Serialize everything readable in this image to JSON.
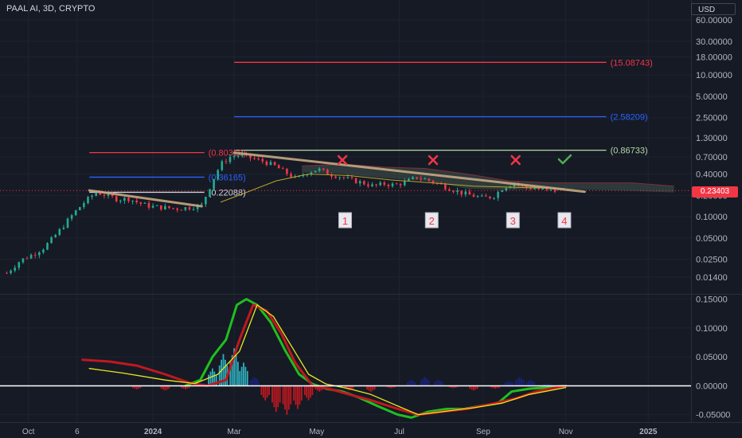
{
  "header": {
    "title": "PAAL AI, 3D, CRYPTO",
    "currency": "USD"
  },
  "colors": {
    "background": "#161a25",
    "grid": "#1f2330",
    "bull": "#22ab94",
    "bear": "#f23645",
    "trendline": "#c7a783",
    "macd_line": "#1fbf1f",
    "signal_line": "#c0181f",
    "slow_line": "#e8e81f",
    "hist_pos": "#2fb0bf",
    "hist_pos_dark": "#1a237e",
    "hist_neg": "#c0181f",
    "level_red": "#f23645",
    "level_blue": "#2962ff",
    "level_white": "#d1d4dc",
    "level_green": "#b6d7a8",
    "cross": "#f23645",
    "check": "#4caf50"
  },
  "current_price": {
    "label": "0.23403",
    "value": 0.23403
  },
  "chart_data": [
    {
      "type": "candlestick",
      "title": "",
      "yscale": "log",
      "y_ticks": [
        "60.00000",
        "30.00000",
        "18.00000",
        "10.00000",
        "5.00000",
        "2.50000",
        "1.30000",
        "0.70000",
        "0.40000",
        "0.20000",
        "0.10000",
        "0.05000",
        "0.02500",
        "0.01400"
      ],
      "x_ticks": [
        "Oct",
        "6",
        "2024",
        "Mar",
        "May",
        "Jul",
        "Sep",
        "Nov",
        "2025"
      ],
      "x_tick_dates": [
        "2023-10-01",
        "2023-11-06",
        "2024-01-01",
        "2024-03-01",
        "2024-05-01",
        "2024-07-01",
        "2024-09-01",
        "2024-11-01",
        "2025-01-01"
      ],
      "close_path": [
        [
          "2023-09-15",
          0.016
        ],
        [
          "2023-09-25",
          0.024
        ],
        [
          "2023-10-05",
          0.03
        ],
        [
          "2023-10-12",
          0.036
        ],
        [
          "2023-10-20",
          0.052
        ],
        [
          "2023-10-27",
          0.075
        ],
        [
          "2023-11-04",
          0.115
        ],
        [
          "2023-11-12",
          0.165
        ],
        [
          "2023-11-20",
          0.22
        ],
        [
          "2023-11-28",
          0.2
        ],
        [
          "2023-12-06",
          0.175
        ],
        [
          "2023-12-14",
          0.18
        ],
        [
          "2023-12-22",
          0.155
        ],
        [
          "2023-12-30",
          0.14
        ],
        [
          "2024-01-08",
          0.135
        ],
        [
          "2024-01-18",
          0.13
        ],
        [
          "2024-01-28",
          0.135
        ],
        [
          "2024-02-06",
          0.145
        ],
        [
          "2024-02-14",
          0.32
        ],
        [
          "2024-02-20",
          0.55
        ],
        [
          "2024-02-28",
          0.72
        ],
        [
          "2024-03-07",
          0.74
        ],
        [
          "2024-03-15",
          0.66
        ],
        [
          "2024-03-23",
          0.6
        ],
        [
          "2024-03-31",
          0.52
        ],
        [
          "2024-04-08",
          0.42
        ],
        [
          "2024-04-16",
          0.34
        ],
        [
          "2024-04-24",
          0.42
        ],
        [
          "2024-05-02",
          0.47
        ],
        [
          "2024-05-10",
          0.4
        ],
        [
          "2024-05-18",
          0.37
        ],
        [
          "2024-05-26",
          0.33
        ],
        [
          "2024-06-04",
          0.3
        ],
        [
          "2024-06-12",
          0.27
        ],
        [
          "2024-06-20",
          0.29
        ],
        [
          "2024-06-28",
          0.28
        ],
        [
          "2024-07-06",
          0.31
        ],
        [
          "2024-07-14",
          0.36
        ],
        [
          "2024-07-22",
          0.33
        ],
        [
          "2024-07-30",
          0.29
        ],
        [
          "2024-08-07",
          0.25
        ],
        [
          "2024-08-15",
          0.22
        ],
        [
          "2024-08-23",
          0.2
        ],
        [
          "2024-08-31",
          0.185
        ],
        [
          "2024-09-08",
          0.19
        ],
        [
          "2024-09-16",
          0.26
        ],
        [
          "2024-09-24",
          0.3
        ],
        [
          "2024-10-02",
          0.26
        ],
        [
          "2024-10-10",
          0.25
        ],
        [
          "2024-10-18",
          0.23
        ],
        [
          "2024-10-26",
          0.234
        ]
      ],
      "horizontal_levels": [
        {
          "label": "(15.08743)",
          "value": 15.08743,
          "color": "level_red",
          "from": "2024-03-01"
        },
        {
          "label": "(2.58209)",
          "value": 2.58209,
          "color": "level_blue",
          "from": "2024-03-01"
        },
        {
          "label": "(0.86733)",
          "value": 0.86733,
          "color": "level_green",
          "from": "2024-03-01"
        },
        {
          "label": "(0.80310)",
          "value": 0.8031,
          "color": "level_red",
          "from": "2023-11-15"
        },
        {
          "label": "(0.36165)",
          "value": 0.36165,
          "color": "level_blue",
          "from": "2023-11-15"
        },
        {
          "label": "(0.22088)",
          "value": 0.22088,
          "color": "level_white",
          "from": "2023-11-15"
        }
      ],
      "trendlines": [
        {
          "from": [
            "2023-11-15",
            0.235
          ],
          "to": [
            "2024-02-06",
            0.14
          ]
        },
        {
          "from": [
            "2024-03-01",
            0.8
          ],
          "to": [
            "2024-11-15",
            0.225
          ]
        }
      ],
      "annotations": [
        {
          "text": "1",
          "date": "2024-05-22"
        },
        {
          "text": "2",
          "date": "2024-07-25"
        },
        {
          "text": "3",
          "date": "2024-09-23"
        },
        {
          "text": "4",
          "date": "2024-10-31"
        }
      ],
      "cross_marks": [
        "2024-05-20",
        "2024-07-26",
        "2024-09-25"
      ],
      "check_mark": "2024-10-31"
    },
    {
      "type": "line",
      "title": "",
      "y_ticks": [
        "0.15000",
        "0.10000",
        "0.05000",
        "0.00000",
        "-0.05000"
      ],
      "ylim": [
        -0.06,
        0.155
      ],
      "zero_line": 0,
      "series": [
        {
          "role": "macd",
          "color": "macd_line",
          "points": [
            [
              "2024-01-25",
              0.0
            ],
            [
              "2024-02-05",
              0.01
            ],
            [
              "2024-02-14",
              0.05
            ],
            [
              "2024-02-24",
              0.08
            ],
            [
              "2024-03-03",
              0.14
            ],
            [
              "2024-03-10",
              0.15
            ],
            [
              "2024-03-18",
              0.14
            ],
            [
              "2024-03-28",
              0.11
            ],
            [
              "2024-04-08",
              0.06
            ],
            [
              "2024-04-18",
              0.02
            ],
            [
              "2024-04-28",
              0.003
            ],
            [
              "2024-05-08",
              -0.005
            ],
            [
              "2024-05-20",
              -0.01
            ],
            [
              "2024-06-01",
              -0.02
            ],
            [
              "2024-06-15",
              -0.035
            ],
            [
              "2024-06-30",
              -0.05
            ],
            [
              "2024-07-10",
              -0.055
            ],
            [
              "2024-07-22",
              -0.045
            ],
            [
              "2024-08-05",
              -0.04
            ],
            [
              "2024-08-18",
              -0.04
            ],
            [
              "2024-08-30",
              -0.035
            ],
            [
              "2024-09-12",
              -0.03
            ],
            [
              "2024-09-22",
              -0.01
            ],
            [
              "2024-10-05",
              -0.005
            ],
            [
              "2024-10-18",
              -0.003
            ],
            [
              "2024-11-01",
              0.0
            ]
          ]
        },
        {
          "role": "signal",
          "color": "signal_line",
          "points": [
            [
              "2023-11-10",
              0.045
            ],
            [
              "2023-11-30",
              0.042
            ],
            [
              "2023-12-20",
              0.035
            ],
            [
              "2024-01-10",
              0.02
            ],
            [
              "2024-01-28",
              0.005
            ],
            [
              "2024-02-10",
              0.0
            ],
            [
              "2024-02-24",
              0.01
            ],
            [
              "2024-03-05",
              0.08
            ],
            [
              "2024-03-15",
              0.14
            ],
            [
              "2024-03-25",
              0.13
            ],
            [
              "2024-04-05",
              0.09
            ],
            [
              "2024-04-15",
              0.04
            ],
            [
              "2024-04-28",
              0.0
            ],
            [
              "2024-05-10",
              -0.005
            ],
            [
              "2024-05-25",
              -0.015
            ],
            [
              "2024-06-10",
              -0.025
            ],
            [
              "2024-06-30",
              -0.04
            ],
            [
              "2024-07-15",
              -0.05
            ],
            [
              "2024-08-01",
              -0.045
            ],
            [
              "2024-08-20",
              -0.04
            ],
            [
              "2024-09-10",
              -0.03
            ],
            [
              "2024-09-25",
              -0.022
            ],
            [
              "2024-10-10",
              -0.01
            ],
            [
              "2024-10-25",
              -0.003
            ],
            [
              "2024-11-01",
              0.0
            ]
          ]
        },
        {
          "role": "slow",
          "color": "slow_line",
          "points": [
            [
              "2023-11-15",
              0.03
            ],
            [
              "2023-12-10",
              0.022
            ],
            [
              "2024-01-10",
              0.01
            ],
            [
              "2024-02-01",
              0.004
            ],
            [
              "2024-02-18",
              0.02
            ],
            [
              "2024-03-05",
              0.06
            ],
            [
              "2024-03-18",
              0.14
            ],
            [
              "2024-03-30",
              0.12
            ],
            [
              "2024-04-12",
              0.07
            ],
            [
              "2024-04-25",
              0.02
            ],
            [
              "2024-05-08",
              0.003
            ],
            [
              "2024-05-25",
              -0.005
            ],
            [
              "2024-06-10",
              -0.015
            ],
            [
              "2024-06-30",
              -0.035
            ],
            [
              "2024-07-15",
              -0.05
            ],
            [
              "2024-08-01",
              -0.045
            ],
            [
              "2024-08-25",
              -0.038
            ],
            [
              "2024-09-15",
              -0.03
            ],
            [
              "2024-10-05",
              -0.015
            ],
            [
              "2024-11-01",
              -0.003
            ]
          ]
        }
      ],
      "histogram": [
        [
          "2023-12-20",
          -0.006
        ],
        [
          "2024-01-10",
          -0.008
        ],
        [
          "2024-01-25",
          -0.006
        ],
        [
          "2024-02-06",
          0.005
        ],
        [
          "2024-02-14",
          0.03
        ],
        [
          "2024-02-22",
          0.055
        ],
        [
          "2024-03-01",
          0.065
        ],
        [
          "2024-03-08",
          0.04
        ],
        [
          "2024-03-16",
          0.015
        ],
        [
          "2024-03-24",
          -0.025
        ],
        [
          "2024-04-01",
          -0.045
        ],
        [
          "2024-04-09",
          -0.05
        ],
        [
          "2024-04-17",
          -0.04
        ],
        [
          "2024-04-25",
          -0.025
        ],
        [
          "2024-05-03",
          -0.01
        ],
        [
          "2024-05-11",
          -0.002
        ],
        [
          "2024-05-25",
          -0.008
        ],
        [
          "2024-06-10",
          -0.01
        ],
        [
          "2024-06-25",
          -0.004
        ],
        [
          "2024-07-10",
          0.01
        ],
        [
          "2024-07-20",
          0.015
        ],
        [
          "2024-07-30",
          0.01
        ],
        [
          "2024-08-10",
          -0.004
        ],
        [
          "2024-08-25",
          -0.008
        ],
        [
          "2024-09-10",
          -0.005
        ],
        [
          "2024-09-20",
          0.008
        ],
        [
          "2024-09-28",
          0.015
        ],
        [
          "2024-10-06",
          0.01
        ],
        [
          "2024-10-18",
          0.004
        ],
        [
          "2024-10-28",
          0.001
        ]
      ]
    }
  ]
}
